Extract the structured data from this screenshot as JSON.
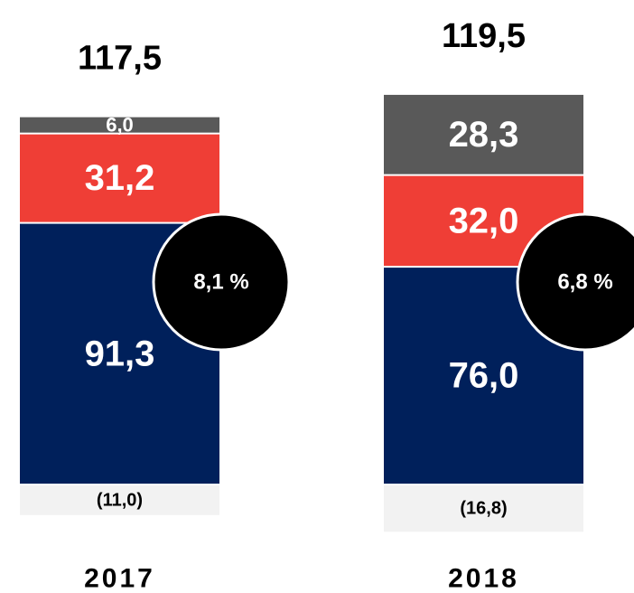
{
  "chart_data": {
    "type": "stacked_bar",
    "categories": [
      "2017",
      "2018"
    ],
    "series": [
      {
        "color": "#00205b",
        "values": [
          91.3,
          76.0
        ],
        "value_labels": [
          "91,3",
          "76,0"
        ]
      },
      {
        "color": "#ef3e36",
        "values": [
          31.2,
          32.0
        ],
        "value_labels": [
          "31,2",
          "32,0"
        ]
      },
      {
        "color": "#595959",
        "values": [
          6.0,
          28.3
        ],
        "value_labels": [
          "6,0",
          "28,3"
        ]
      },
      {
        "color": "#f2f2f2",
        "values": [
          -11.0,
          -16.8
        ],
        "value_labels": [
          "(11,0)",
          "(16,8)"
        ]
      }
    ],
    "totals": [
      117.5,
      119.5
    ],
    "total_labels": [
      "117,5",
      "119,5"
    ],
    "annotations": [
      {
        "value": 8.1,
        "label": "8,1 %"
      },
      {
        "value": 6.8,
        "label": "6,8 %"
      }
    ]
  }
}
